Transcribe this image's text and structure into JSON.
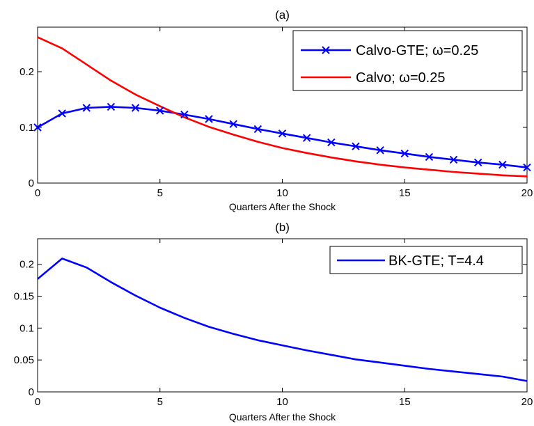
{
  "chart_data": [
    {
      "type": "line",
      "title": "(a)",
      "xlabel": "Quarters After the Shock",
      "ylabel": "",
      "xlim": [
        0,
        20
      ],
      "ylim": [
        0,
        0.28
      ],
      "xticks": [
        0,
        5,
        10,
        15,
        20
      ],
      "yticks": [
        0,
        0.1,
        0.2
      ],
      "ytick_labels": [
        "0",
        "0.1",
        "0.2"
      ],
      "grid": false,
      "legend_position": "top-right",
      "series": [
        {
          "name": "Calvo-GTE;  ω=0.25",
          "color": "#0000ff",
          "marker": "x",
          "x": [
            0,
            1,
            2,
            3,
            4,
            5,
            6,
            7,
            8,
            9,
            10,
            11,
            12,
            13,
            14,
            15,
            16,
            17,
            18,
            19,
            20
          ],
          "y": [
            0.1,
            0.125,
            0.135,
            0.137,
            0.135,
            0.13,
            0.123,
            0.115,
            0.106,
            0.097,
            0.089,
            0.081,
            0.073,
            0.066,
            0.059,
            0.053,
            0.047,
            0.042,
            0.037,
            0.033,
            0.028
          ]
        },
        {
          "name": "Calvo; ω=0.25",
          "color": "#ff0000",
          "marker": "none",
          "x": [
            0,
            1,
            2,
            3,
            4,
            5,
            6,
            7,
            8,
            9,
            10,
            11,
            12,
            13,
            14,
            15,
            16,
            17,
            18,
            19,
            20
          ],
          "y": [
            0.262,
            0.242,
            0.213,
            0.184,
            0.159,
            0.138,
            0.118,
            0.101,
            0.087,
            0.074,
            0.063,
            0.054,
            0.046,
            0.039,
            0.033,
            0.028,
            0.024,
            0.02,
            0.017,
            0.014,
            0.012
          ]
        }
      ]
    },
    {
      "type": "line",
      "title": "(b)",
      "xlabel": "Quarters After the Shock",
      "ylabel": "",
      "xlim": [
        0,
        20
      ],
      "ylim": [
        0,
        0.24
      ],
      "xticks": [
        0,
        5,
        10,
        15,
        20
      ],
      "yticks": [
        0,
        0.05,
        0.1,
        0.15,
        0.2
      ],
      "ytick_labels": [
        "0",
        "0.05",
        "0.1",
        "0.15",
        "0.2"
      ],
      "grid": false,
      "legend_position": "top-right",
      "series": [
        {
          "name": "BK-GTE; T=4.4",
          "color": "#0000ff",
          "marker": "none",
          "x": [
            0,
            1,
            2,
            3,
            4,
            5,
            6,
            7,
            8,
            9,
            10,
            11,
            12,
            13,
            14,
            15,
            16,
            17,
            18,
            19,
            20
          ],
          "y": [
            0.177,
            0.209,
            0.195,
            0.172,
            0.151,
            0.132,
            0.116,
            0.102,
            0.091,
            0.081,
            0.073,
            0.065,
            0.058,
            0.051,
            0.046,
            0.041,
            0.036,
            0.032,
            0.028,
            0.024,
            0.017
          ]
        }
      ]
    }
  ]
}
